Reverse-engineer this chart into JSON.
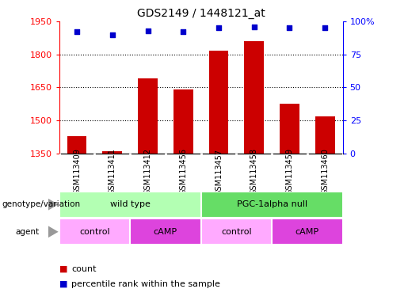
{
  "title": "GDS2149 / 1448121_at",
  "samples": [
    "GSM113409",
    "GSM113411",
    "GSM113412",
    "GSM113456",
    "GSM113457",
    "GSM113458",
    "GSM113459",
    "GSM113460"
  ],
  "counts": [
    1430,
    1360,
    1690,
    1640,
    1815,
    1860,
    1575,
    1520
  ],
  "percentile_ranks": [
    92,
    90,
    93,
    92,
    95,
    96,
    95,
    95
  ],
  "ylim_left": [
    1350,
    1950
  ],
  "ylim_right": [
    0,
    100
  ],
  "yticks_left": [
    1350,
    1500,
    1650,
    1800,
    1950
  ],
  "yticks_right": [
    0,
    25,
    50,
    75,
    100
  ],
  "bar_color": "#cc0000",
  "dot_color": "#0000cc",
  "genotype_groups": [
    {
      "label": "wild type",
      "start": 0,
      "end": 4,
      "color": "#b3ffb3"
    },
    {
      "label": "PGC-1alpha null",
      "start": 4,
      "end": 8,
      "color": "#66dd66"
    }
  ],
  "agent_groups": [
    {
      "label": "control",
      "start": 0,
      "end": 2,
      "color": "#ffaaff"
    },
    {
      "label": "cAMP",
      "start": 2,
      "end": 4,
      "color": "#dd44dd"
    },
    {
      "label": "control",
      "start": 4,
      "end": 6,
      "color": "#ffaaff"
    },
    {
      "label": "cAMP",
      "start": 6,
      "end": 8,
      "color": "#dd44dd"
    }
  ],
  "background_color": "#ffffff",
  "grid_dotted_at": [
    1500,
    1650,
    1800
  ],
  "sample_box_color": "#cccccc",
  "legend_count_color": "#cc0000",
  "legend_pct_color": "#0000cc"
}
